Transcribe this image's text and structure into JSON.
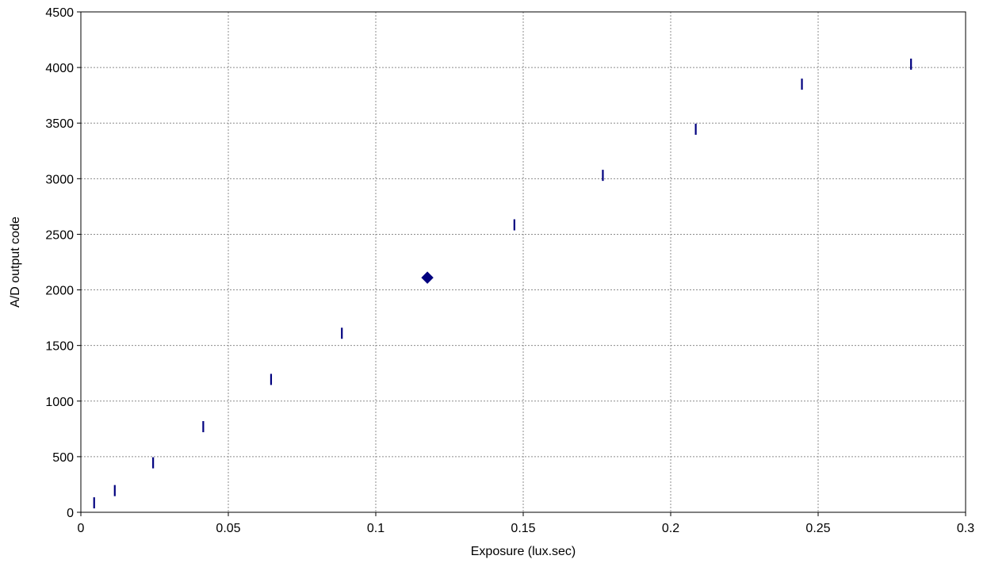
{
  "chart_data": {
    "type": "scatter",
    "title": "",
    "xlabel": "Exposure (lux.sec)",
    "ylabel": "A/D output code",
    "xlim": [
      0,
      0.3
    ],
    "ylim": [
      0,
      4500
    ],
    "x_ticks": [
      "0",
      "0.05",
      "0.1",
      "0.15",
      "0.2",
      "0.25",
      "0.3"
    ],
    "y_ticks": [
      "0",
      "500",
      "1000",
      "1500",
      "2000",
      "2500",
      "3000",
      "3500",
      "4000",
      "4500"
    ],
    "grid": true,
    "legend": "none",
    "series": [
      {
        "marker": "vertical-dash",
        "color": "#00007f",
        "points": [
          {
            "x": 0.0045,
            "y": 85
          },
          {
            "x": 0.0115,
            "y": 195
          },
          {
            "x": 0.0245,
            "y": 445
          },
          {
            "x": 0.0415,
            "y": 770
          },
          {
            "x": 0.0645,
            "y": 1195
          },
          {
            "x": 0.0885,
            "y": 1610
          },
          {
            "x": 0.147,
            "y": 2585
          },
          {
            "x": 0.177,
            "y": 3030
          },
          {
            "x": 0.2085,
            "y": 3445
          },
          {
            "x": 0.2445,
            "y": 3850
          },
          {
            "x": 0.2815,
            "y": 4030
          }
        ]
      },
      {
        "marker": "diamond",
        "color": "#00007f",
        "points": [
          {
            "x": 0.1175,
            "y": 2110
          }
        ]
      }
    ]
  }
}
